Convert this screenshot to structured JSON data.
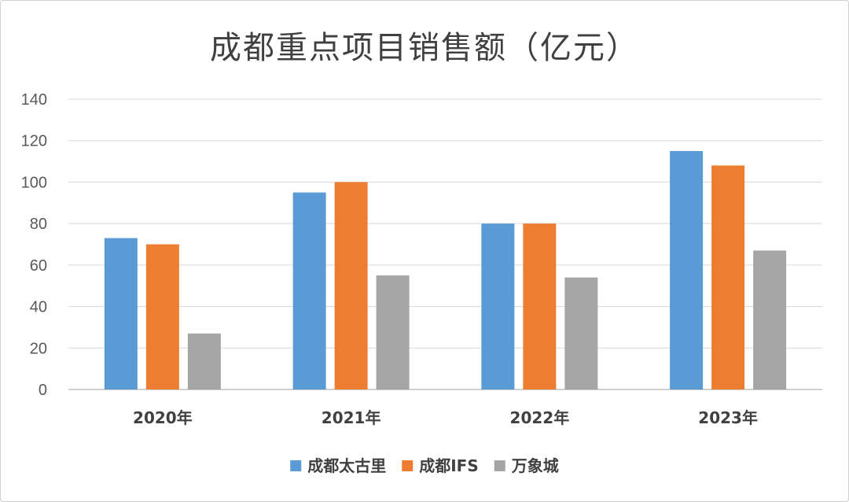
{
  "chart_data": {
    "type": "bar",
    "title": "成都重点项目销售额（亿元）",
    "xlabel": "",
    "ylabel": "",
    "categories": [
      "2020年",
      "2021年",
      "2022年",
      "2023年"
    ],
    "series": [
      {
        "name": "成都太古里",
        "color": "#5b9bd5",
        "values": [
          73,
          95,
          80,
          115
        ]
      },
      {
        "name": "成都IFS",
        "color": "#ed7d31",
        "values": [
          70,
          100,
          80,
          108
        ]
      },
      {
        "name": "万象城",
        "color": "#a5a5a5",
        "values": [
          27,
          55,
          54,
          67
        ]
      }
    ],
    "ylim": [
      0,
      140
    ],
    "yticks": [
      0,
      20,
      40,
      60,
      80,
      100,
      120,
      140
    ],
    "grid": true,
    "legend_position": "bottom"
  }
}
